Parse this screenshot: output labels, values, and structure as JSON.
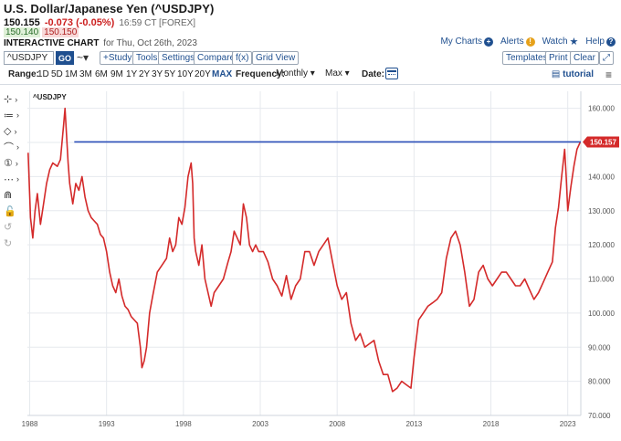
{
  "header": {
    "title": "U.S. Dollar/Japanese Yen (^USDJPY)",
    "price": "150.155",
    "change": "-0.073 (-0.05%)",
    "time": "16:59 CT [FOREX]",
    "bid": "150.140",
    "ask": "150.150",
    "chart_label": "INTERACTIVE CHART",
    "chart_date": "for Thu, Oct 26th, 2023"
  },
  "toplinks": {
    "my_charts": "My Charts",
    "alerts": "Alerts",
    "watch": "Watch",
    "help": "Help"
  },
  "toolbar": {
    "symbol_value": "^USDJPY",
    "go_label": "GO",
    "chart_type_glyph": "~▾",
    "study_label": "+Study",
    "tools_label": "Tools",
    "settings_label": "Settings",
    "compare_label": "Compare",
    "fx_label": "f(x)",
    "gridview_label": "Grid View",
    "templates_label": "Templates",
    "print_label": "Print",
    "clear_label": "Clear",
    "expand_glyph": "⤢"
  },
  "rangebar": {
    "range_label": "Range:",
    "ranges": [
      "1D",
      "5D",
      "1M",
      "3M",
      "6M",
      "9M",
      "1Y",
      "2Y",
      "3Y",
      "5Y",
      "10Y",
      "20Y",
      "MAX"
    ],
    "active_range": "MAX",
    "frequency_label": "Frequency:",
    "frequency_value": "Monthly ▾",
    "period_value": "Max ▾",
    "date_label": "Date:",
    "tutorial_label": "tutorial",
    "menu_glyph": "≡"
  },
  "left_tools": [
    {
      "name": "crosshair-tool-icon",
      "glyph": "⊹"
    },
    {
      "name": "lines-tool-icon",
      "glyph": "≔"
    },
    {
      "name": "shapes-tool-icon",
      "glyph": "◇"
    },
    {
      "name": "fibonacci-tool-icon",
      "glyph": "⌒"
    },
    {
      "name": "annotation-tool-icon",
      "glyph": "①"
    },
    {
      "name": "measure-tool-icon",
      "glyph": "⋯"
    },
    {
      "name": "magnet-icon",
      "glyph": "⋒"
    },
    {
      "name": "lock-icon",
      "glyph": "🔓"
    },
    {
      "name": "undo-icon",
      "glyph": "↺"
    },
    {
      "name": "redo-icon",
      "glyph": "↻"
    }
  ],
  "colors": {
    "series": "#d42a2a",
    "reference_line": "#2b4fb8",
    "accent": "#1f4f8f",
    "grid": "#e6e9ee"
  },
  "chart_data": {
    "type": "line",
    "legend_label": "^USDJPY",
    "last_value_label": "150.157",
    "reference_level": 150.157,
    "ylim": [
      70,
      165
    ],
    "yticks": [
      70,
      80,
      90,
      100,
      110,
      120,
      130,
      140,
      150,
      160
    ],
    "ytick_labels": [
      "70.000",
      "80.000",
      "90.000",
      "100.000",
      "110.000",
      "120.000",
      "130.000",
      "140.000",
      "150.000",
      "160.000"
    ],
    "xlim": [
      1987.85,
      2023.85
    ],
    "xticks": [
      1988,
      1993,
      1998,
      2003,
      2008,
      2013,
      2018,
      2023
    ],
    "xtick_labels": [
      "1988",
      "1993",
      "1998",
      "2003",
      "2008",
      "2013",
      "2018",
      "2023"
    ],
    "series": [
      {
        "x": [
          1987.9,
          1988.05,
          1988.2,
          1988.35,
          1988.5,
          1988.7,
          1988.9,
          1989.1,
          1989.3,
          1989.5,
          1989.8,
          1990.0,
          1990.2,
          1990.3,
          1990.4,
          1990.5,
          1990.6,
          1990.8,
          1991.0,
          1991.2,
          1991.4,
          1991.6,
          1991.8,
          1992.0,
          1992.2,
          1992.4,
          1992.6,
          1992.8,
          1993.0,
          1993.2,
          1993.4,
          1993.6,
          1993.8,
          1994.0,
          1994.2,
          1994.4,
          1994.6,
          1994.8,
          1995.0,
          1995.2,
          1995.3,
          1995.45,
          1995.6,
          1995.8,
          1996.0,
          1996.3,
          1996.6,
          1996.9,
          1997.1,
          1997.3,
          1997.5,
          1997.7,
          1997.9,
          1998.1,
          1998.3,
          1998.5,
          1998.6,
          1998.7,
          1998.8,
          1999.0,
          1999.2,
          1999.4,
          1999.6,
          1999.8,
          2000.0,
          2000.3,
          2000.6,
          2000.9,
          2001.1,
          2001.3,
          2001.5,
          2001.7,
          2001.9,
          2002.1,
          2002.3,
          2002.5,
          2002.7,
          2002.9,
          2003.2,
          2003.5,
          2003.8,
          2004.1,
          2004.4,
          2004.7,
          2005.0,
          2005.3,
          2005.6,
          2005.9,
          2006.2,
          2006.5,
          2006.8,
          2007.1,
          2007.4,
          2007.7,
          2008.0,
          2008.3,
          2008.6,
          2008.9,
          2009.2,
          2009.5,
          2009.8,
          2010.1,
          2010.4,
          2010.7,
          2011.0,
          2011.3,
          2011.6,
          2011.9,
          2012.2,
          2012.5,
          2012.8,
          2013.0,
          2013.3,
          2013.6,
          2013.9,
          2014.2,
          2014.5,
          2014.8,
          2015.1,
          2015.4,
          2015.7,
          2016.0,
          2016.3,
          2016.6,
          2016.9,
          2017.2,
          2017.5,
          2017.8,
          2018.1,
          2018.4,
          2018.7,
          2019.0,
          2019.3,
          2019.6,
          2019.9,
          2020.2,
          2020.5,
          2020.8,
          2021.1,
          2021.4,
          2021.7,
          2022.0,
          2022.2,
          2022.4,
          2022.6,
          2022.8,
          2022.9,
          2023.0,
          2023.2,
          2023.4,
          2023.6,
          2023.8
        ],
        "values": [
          147,
          128,
          122,
          130,
          135,
          126,
          132,
          138,
          142,
          144,
          143,
          145,
          155,
          160,
          152,
          144,
          138,
          132,
          138,
          136,
          140,
          134,
          130,
          128,
          127,
          126,
          123,
          122,
          118,
          112,
          108,
          106,
          110,
          105,
          102,
          101,
          99,
          98,
          97,
          90,
          84,
          86,
          90,
          100,
          105,
          112,
          114,
          116,
          122,
          118,
          120,
          128,
          126,
          131,
          140,
          144,
          138,
          122,
          118,
          114,
          120,
          110,
          106,
          102,
          106,
          108,
          110,
          115,
          118,
          124,
          122,
          120,
          132,
          128,
          120,
          118,
          120,
          118,
          118,
          115,
          110,
          108,
          105,
          111,
          104,
          108,
          110,
          118,
          118,
          114,
          118,
          120,
          122,
          115,
          108,
          104,
          106,
          97,
          92,
          94,
          90,
          91,
          92,
          86,
          82,
          82,
          77,
          78,
          80,
          79,
          78,
          87,
          98,
          100,
          102,
          103,
          104,
          106,
          116,
          122,
          124,
          120,
          112,
          102,
          104,
          112,
          114,
          110,
          108,
          110,
          112,
          112,
          110,
          108,
          108,
          110,
          107,
          104,
          106,
          109,
          112,
          115,
          125,
          131,
          140,
          148,
          140,
          130,
          137,
          143,
          148,
          150
        ]
      }
    ]
  }
}
